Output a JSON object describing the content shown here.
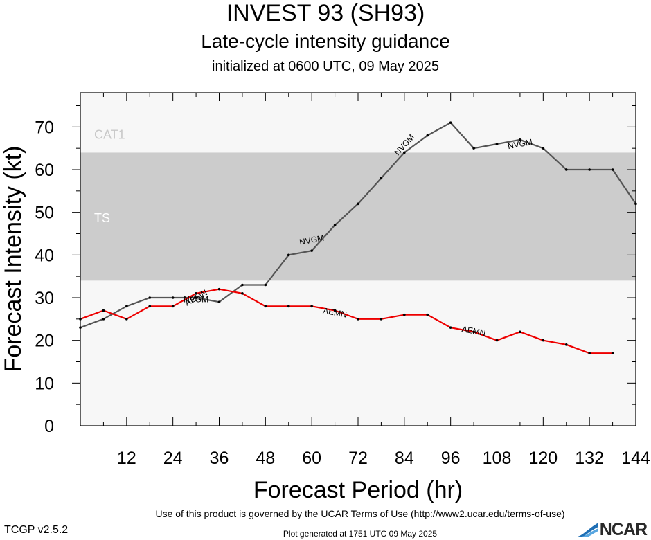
{
  "header": {
    "title": "INVEST 93 (SH93)",
    "subtitle": "Late-cycle intensity guidance",
    "initialized": "initialized at 0600 UTC, 09 May 2025"
  },
  "chart_data": {
    "type": "line",
    "xlabel": "Forecast Period (hr)",
    "ylabel": "Forecast Intensity (kt)",
    "xlim": [
      0,
      144
    ],
    "ylim": [
      0,
      78
    ],
    "xticks": [
      12,
      24,
      36,
      48,
      60,
      72,
      84,
      96,
      108,
      120,
      132,
      144
    ],
    "yticks": [
      0,
      10,
      20,
      30,
      40,
      50,
      60,
      70
    ],
    "bands": [
      {
        "name": "TS",
        "range": [
          34,
          64
        ],
        "color": "#cccccc"
      },
      {
        "name": "CAT1",
        "range": [
          64,
          83
        ],
        "color": "#f7f7f7"
      }
    ],
    "background": "#f7f7f7",
    "series": [
      {
        "name": "NVGM",
        "color": "#555555",
        "x": [
          0,
          6,
          12,
          18,
          24,
          30,
          36,
          42,
          48,
          54,
          60,
          66,
          72,
          78,
          84,
          90,
          96,
          102,
          108,
          114,
          120,
          126,
          132,
          138,
          144
        ],
        "y": [
          23,
          25,
          28,
          30,
          30,
          30,
          29,
          33,
          33,
          40,
          41,
          47,
          52,
          58,
          64,
          68,
          71,
          65,
          66,
          67,
          65,
          60,
          60,
          60,
          52
        ],
        "labels_at": [
          [
            30,
            29.6
          ],
          [
            60,
            43.5
          ],
          [
            84,
            65.8
          ],
          [
            114,
            66
          ]
        ]
      },
      {
        "name": "AEMN",
        "color": "#ee0000",
        "x": [
          0,
          6,
          12,
          18,
          24,
          30,
          36,
          42,
          48,
          54,
          60,
          66,
          72,
          78,
          84,
          90,
          96,
          102,
          108,
          114,
          120,
          126,
          132,
          138
        ],
        "y": [
          25,
          27,
          25,
          28,
          28,
          31,
          32,
          31,
          28,
          28,
          28,
          27,
          25,
          25,
          26,
          26,
          23,
          22,
          20,
          22,
          20,
          19,
          17,
          17
        ],
        "labels_at": [
          [
            30,
            30
          ],
          [
            66,
            26.5
          ],
          [
            102,
            22.2
          ]
        ]
      }
    ]
  },
  "footer": {
    "terms": "Use of this product is governed by the UCAR Terms of Use (http://www2.ucar.edu/terms-of-use)",
    "version": "TCGP v2.5.2",
    "generated": "Plot generated at 1751 UTC   09 May 2025",
    "logo": "NCAR"
  }
}
